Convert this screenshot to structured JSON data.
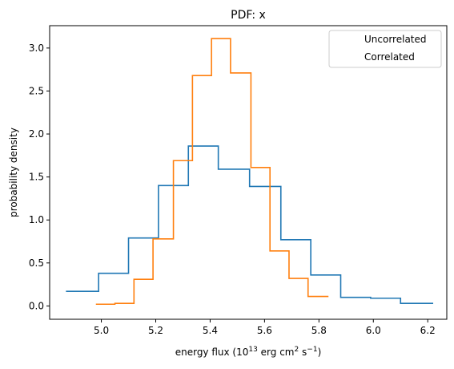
{
  "chart_data": {
    "type": "histogram",
    "title": "PDF: x",
    "xlabel": {
      "prefix": "energy flux (10",
      "exp1": "13",
      "mid": " erg cm",
      "exp2": "2",
      "mid2": " s",
      "exp3": "−1",
      "suffix": ")"
    },
    "ylabel": "probability density",
    "xlim": [
      4.81,
      6.27
    ],
    "ylim": [
      -0.155,
      3.26
    ],
    "xticks": [
      5.0,
      5.2,
      5.4,
      5.6,
      5.8,
      6.0,
      6.2
    ],
    "xtick_labels": [
      "5.0",
      "5.2",
      "5.4",
      "5.6",
      "5.8",
      "6.0",
      "6.2"
    ],
    "yticks": [
      0.0,
      0.5,
      1.0,
      1.5,
      2.0,
      2.5,
      3.0
    ],
    "ytick_labels": [
      "0.0",
      "0.5",
      "1.0",
      "1.5",
      "2.0",
      "2.5",
      "3.0"
    ],
    "grid": false,
    "legend_position": "top-right",
    "series": [
      {
        "name": "Uncorrelated",
        "color": "#1f77b4",
        "bin_edges": [
          4.87,
          4.99,
          5.1,
          5.21,
          5.32,
          5.43,
          5.545,
          5.66,
          5.77,
          5.88,
          5.99,
          6.1,
          6.22
        ],
        "values": [
          0.17,
          0.38,
          0.79,
          1.4,
          1.86,
          1.59,
          1.39,
          0.77,
          0.36,
          0.1,
          0.09,
          0.03
        ]
      },
      {
        "name": "Correlated",
        "color": "#ff7f0e",
        "bin_edges": [
          4.98,
          5.05,
          5.12,
          5.19,
          5.265,
          5.335,
          5.405,
          5.475,
          5.55,
          5.62,
          5.69,
          5.76,
          5.835
        ],
        "values": [
          0.02,
          0.03,
          0.31,
          0.78,
          1.69,
          2.68,
          3.11,
          2.71,
          1.61,
          0.64,
          0.32,
          0.11
        ]
      }
    ]
  }
}
